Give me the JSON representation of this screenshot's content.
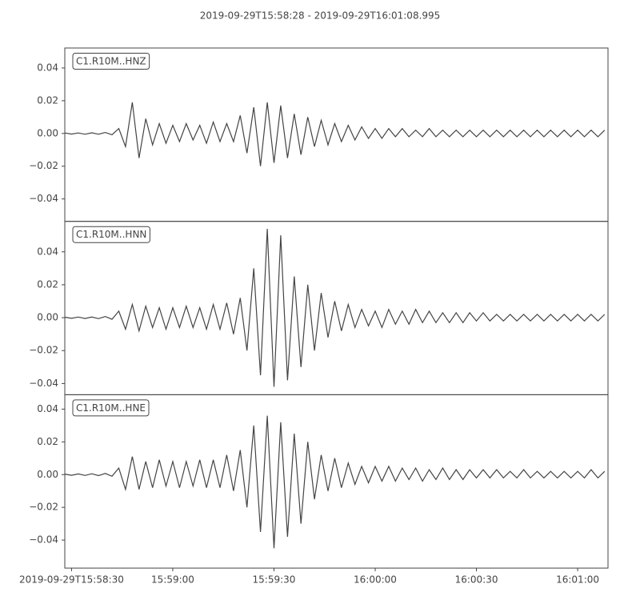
{
  "chart_data": {
    "type": "line",
    "title": "2019-09-29T15:58:28  -  2019-09-29T16:01:08.995",
    "x": [
      "2019-09-29T15:58:28",
      "2019-09-29T15:58:30",
      "2019-09-29T15:58:32",
      "2019-09-29T15:58:34",
      "2019-09-29T15:58:36",
      "2019-09-29T15:58:38",
      "2019-09-29T15:58:40",
      "2019-09-29T15:58:42",
      "2019-09-29T15:58:44",
      "2019-09-29T15:58:46",
      "2019-09-29T15:58:48",
      "2019-09-29T15:58:50",
      "2019-09-29T15:58:52",
      "2019-09-29T15:58:54",
      "2019-09-29T15:58:56",
      "2019-09-29T15:58:58",
      "2019-09-29T15:59:00",
      "2019-09-29T15:59:02",
      "2019-09-29T15:59:04",
      "2019-09-29T15:59:06",
      "2019-09-29T15:59:08",
      "2019-09-29T15:59:10",
      "2019-09-29T15:59:12",
      "2019-09-29T15:59:14",
      "2019-09-29T15:59:16",
      "2019-09-29T15:59:18",
      "2019-09-29T15:59:20",
      "2019-09-29T15:59:22",
      "2019-09-29T15:59:24",
      "2019-09-29T15:59:26",
      "2019-09-29T15:59:28",
      "2019-09-29T15:59:30",
      "2019-09-29T15:59:32",
      "2019-09-29T15:59:34",
      "2019-09-29T15:59:36",
      "2019-09-29T15:59:38",
      "2019-09-29T15:59:40",
      "2019-09-29T15:59:42",
      "2019-09-29T15:59:44",
      "2019-09-29T15:59:46",
      "2019-09-29T15:59:48",
      "2019-09-29T15:59:50",
      "2019-09-29T15:59:52",
      "2019-09-29T15:59:54",
      "2019-09-29T15:59:56",
      "2019-09-29T15:59:58",
      "2019-09-29T16:00:00",
      "2019-09-29T16:00:02",
      "2019-09-29T16:00:04",
      "2019-09-29T16:00:06",
      "2019-09-29T16:00:08",
      "2019-09-29T16:00:10",
      "2019-09-29T16:00:12",
      "2019-09-29T16:00:14",
      "2019-09-29T16:00:16",
      "2019-09-29T16:00:18",
      "2019-09-29T16:00:20",
      "2019-09-29T16:00:22",
      "2019-09-29T16:00:24",
      "2019-09-29T16:00:26",
      "2019-09-29T16:00:28",
      "2019-09-29T16:00:30",
      "2019-09-29T16:00:32",
      "2019-09-29T16:00:34",
      "2019-09-29T16:00:36",
      "2019-09-29T16:00:38",
      "2019-09-29T16:00:40",
      "2019-09-29T16:00:42",
      "2019-09-29T16:00:44",
      "2019-09-29T16:00:46",
      "2019-09-29T16:00:48",
      "2019-09-29T16:00:50",
      "2019-09-29T16:00:52",
      "2019-09-29T16:00:54",
      "2019-09-29T16:00:56",
      "2019-09-29T16:00:58",
      "2019-09-29T16:01:00",
      "2019-09-29T16:01:02",
      "2019-09-29T16:01:04",
      "2019-09-29T16:01:06",
      "2019-09-29T16:01:08"
    ],
    "xlim": [
      "2019-09-29T15:58:28",
      "2019-09-29T16:01:08.995"
    ],
    "xticks": [
      {
        "value": "2019-09-29T15:58:30",
        "label": "2019-09-29T15:58:30"
      },
      {
        "value": "2019-09-29T15:59:00",
        "label": "15:59:00"
      },
      {
        "value": "2019-09-29T15:59:30",
        "label": "15:59:30"
      },
      {
        "value": "2019-09-29T16:00:00",
        "label": "16:00:00"
      },
      {
        "value": "2019-09-29T16:00:30",
        "label": "16:00:30"
      },
      {
        "value": "2019-09-29T16:01:00",
        "label": "16:01:00"
      }
    ],
    "series": [
      {
        "name": "C1.R10M..HNZ",
        "color": "#444444",
        "ylim": [
          -0.0537,
          0.0522
        ],
        "yticks": [
          {
            "value": -0.04,
            "label": "−0.04"
          },
          {
            "value": -0.02,
            "label": "−0.02"
          },
          {
            "value": 0,
            "label": "0.00"
          },
          0.02,
          0.04
        ],
        "values": [
          0.0003,
          -0.0004,
          0.0003,
          -0.0005,
          0.0004,
          -0.0005,
          0.0006,
          -0.0008,
          0.003,
          -0.008,
          0.019,
          -0.015,
          0.009,
          -0.007,
          0.006,
          -0.006,
          0.005,
          -0.005,
          0.006,
          -0.004,
          0.005,
          -0.006,
          0.007,
          -0.005,
          0.006,
          -0.005,
          0.011,
          -0.012,
          0.016,
          -0.02,
          0.019,
          -0.018,
          0.017,
          -0.015,
          0.012,
          -0.013,
          0.01,
          -0.008,
          0.008,
          -0.007,
          0.006,
          -0.005,
          0.005,
          -0.004,
          0.004,
          -0.003,
          0.003,
          -0.003,
          0.003,
          -0.002,
          0.003,
          -0.002,
          0.002,
          -0.002,
          0.003,
          -0.002,
          0.002,
          -0.002,
          0.002,
          -0.002,
          0.002,
          -0.002,
          0.002,
          -0.002,
          0.002,
          -0.002,
          0.002,
          -0.002,
          0.002,
          -0.002,
          0.002,
          -0.002,
          0.002,
          -0.002,
          0.002,
          -0.002,
          0.002,
          -0.002,
          0.002,
          -0.002,
          0.002
        ]
      },
      {
        "name": "C1.R10M..HNN",
        "color": "#444444",
        "ylim": [
          -0.0468,
          0.0585
        ],
        "yticks": [
          {
            "value": -0.04,
            "label": "−0.04"
          },
          {
            "value": -0.02,
            "label": "−0.02"
          },
          {
            "value": 0,
            "label": "0.00"
          },
          0.02,
          0.04
        ],
        "values": [
          0.0003,
          -0.0004,
          0.0004,
          -0.0005,
          0.0004,
          -0.0006,
          0.0007,
          -0.001,
          0.004,
          -0.007,
          0.008,
          -0.008,
          0.007,
          -0.006,
          0.006,
          -0.007,
          0.006,
          -0.006,
          0.007,
          -0.006,
          0.006,
          -0.007,
          0.008,
          -0.007,
          0.009,
          -0.01,
          0.012,
          -0.02,
          0.03,
          -0.035,
          0.054,
          -0.042,
          0.05,
          -0.038,
          0.025,
          -0.03,
          0.02,
          -0.02,
          0.015,
          -0.012,
          0.01,
          -0.008,
          0.008,
          -0.006,
          0.005,
          -0.005,
          0.004,
          -0.006,
          0.005,
          -0.004,
          0.004,
          -0.004,
          0.005,
          -0.003,
          0.004,
          -0.003,
          0.003,
          -0.003,
          0.003,
          -0.003,
          0.003,
          -0.002,
          0.003,
          -0.002,
          0.002,
          -0.002,
          0.002,
          -0.002,
          0.002,
          -0.002,
          0.002,
          -0.002,
          0.002,
          -0.002,
          0.002,
          -0.002,
          0.002,
          -0.002,
          0.002,
          -0.002,
          0.002
        ]
      },
      {
        "name": "C1.R10M..HNE",
        "color": "#444444",
        "ylim": [
          -0.0571,
          0.0488
        ],
        "yticks": [
          {
            "value": -0.04,
            "label": "−0.04"
          },
          {
            "value": -0.02,
            "label": "−0.02"
          },
          {
            "value": 0,
            "label": "0.00"
          },
          0.02,
          0.04
        ],
        "values": [
          0.0003,
          -0.0004,
          0.0004,
          -0.0005,
          0.0005,
          -0.0006,
          0.0007,
          -0.001,
          0.004,
          -0.009,
          0.011,
          -0.009,
          0.008,
          -0.008,
          0.009,
          -0.007,
          0.008,
          -0.008,
          0.008,
          -0.007,
          0.009,
          -0.008,
          0.009,
          -0.008,
          0.012,
          -0.01,
          0.015,
          -0.02,
          0.03,
          -0.035,
          0.036,
          -0.045,
          0.032,
          -0.038,
          0.025,
          -0.03,
          0.02,
          -0.015,
          0.012,
          -0.01,
          0.01,
          -0.008,
          0.007,
          -0.006,
          0.005,
          -0.005,
          0.005,
          -0.004,
          0.005,
          -0.004,
          0.004,
          -0.003,
          0.004,
          -0.004,
          0.003,
          -0.003,
          0.004,
          -0.003,
          0.003,
          -0.003,
          0.003,
          -0.002,
          0.003,
          -0.002,
          0.003,
          -0.002,
          0.002,
          -0.002,
          0.003,
          -0.002,
          0.002,
          -0.002,
          0.002,
          -0.002,
          0.002,
          -0.002,
          0.002,
          -0.002,
          0.003,
          -0.002,
          0.002
        ]
      }
    ]
  }
}
